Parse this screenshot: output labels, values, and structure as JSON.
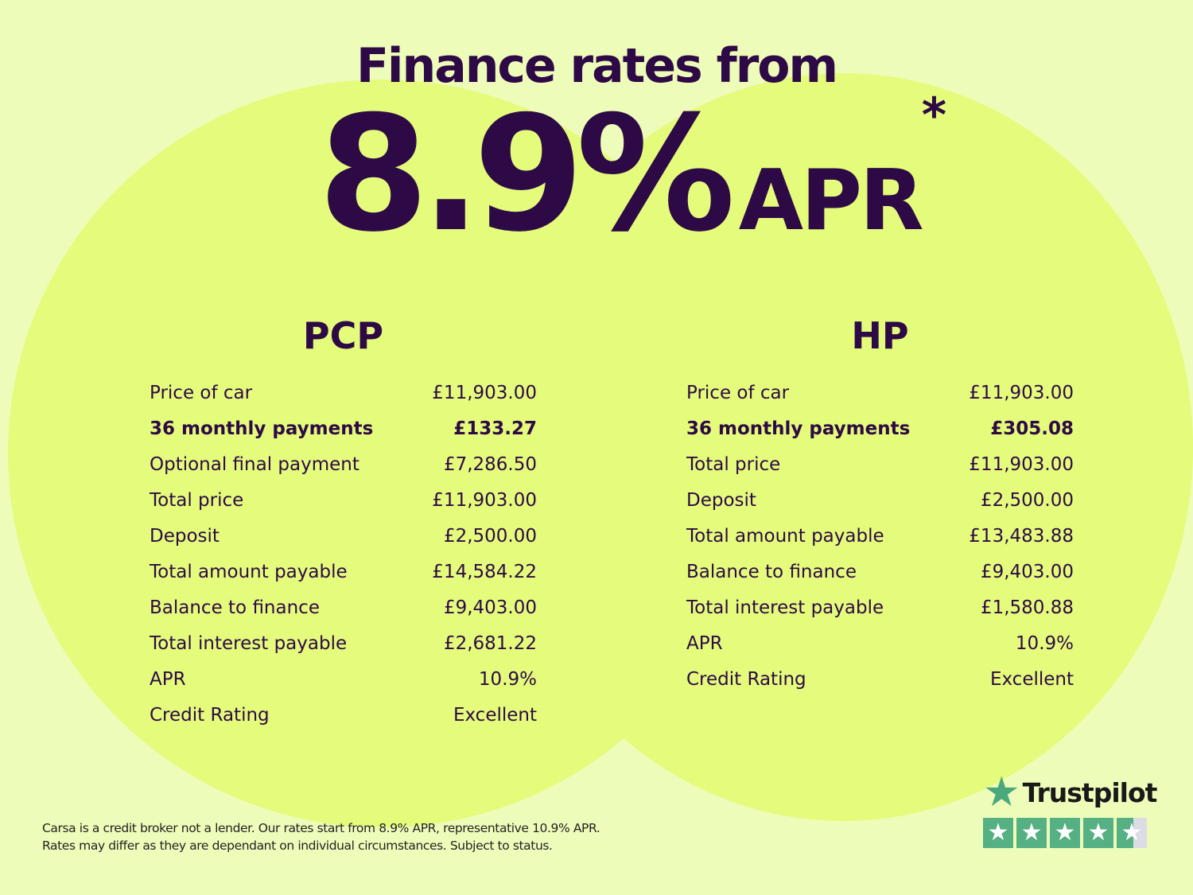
{
  "headline": {
    "title": "Finance rates from",
    "rate": "8.9%",
    "unit": "APR",
    "asterisk": "*"
  },
  "pcp": {
    "heading": "PCP",
    "rows": [
      {
        "label": "Price of car",
        "value": "£11,903.00"
      },
      {
        "label": "36 monthly payments",
        "value": "£133.27",
        "bold": true
      },
      {
        "label": "Optional final payment",
        "value": "£7,286.50"
      },
      {
        "label": "Total price",
        "value": "£11,903.00"
      },
      {
        "label": "Deposit",
        "value": "£2,500.00"
      },
      {
        "label": "Total amount payable",
        "value": "£14,584.22"
      },
      {
        "label": "Balance to finance",
        "value": "£9,403.00"
      },
      {
        "label": "Total interest payable",
        "value": "£2,681.22"
      },
      {
        "label": "APR",
        "value": "10.9%"
      },
      {
        "label": "Credit Rating",
        "value": "Excellent"
      }
    ]
  },
  "hp": {
    "heading": "HP",
    "rows": [
      {
        "label": "Price of car",
        "value": "£11,903.00"
      },
      {
        "label": "36 monthly payments",
        "value": "£305.08",
        "bold": true
      },
      {
        "label": "Total price",
        "value": "£11,903.00"
      },
      {
        "label": "Deposit",
        "value": "£2,500.00"
      },
      {
        "label": "Total amount payable",
        "value": "£13,483.88"
      },
      {
        "label": "Balance to finance",
        "value": "£9,403.00"
      },
      {
        "label": "Total interest payable",
        "value": "£1,580.88"
      },
      {
        "label": "APR",
        "value": "10.9%"
      },
      {
        "label": "Credit Rating",
        "value": "Excellent"
      }
    ]
  },
  "disclaimer": {
    "line1": "Carsa is a credit broker not a lender. Our rates start from 8.9% APR, representative 10.9% APR.",
    "line2": "Rates may differ as they are dependant on individual circumstances. Subject to status."
  },
  "trustpilot": {
    "name": "Trustpilot",
    "rating_stars": 4.5,
    "brand_color": "#55b083"
  },
  "colors": {
    "background": "#eefcb9",
    "circles": "#e4fb7b",
    "text": "#2d0a45"
  }
}
